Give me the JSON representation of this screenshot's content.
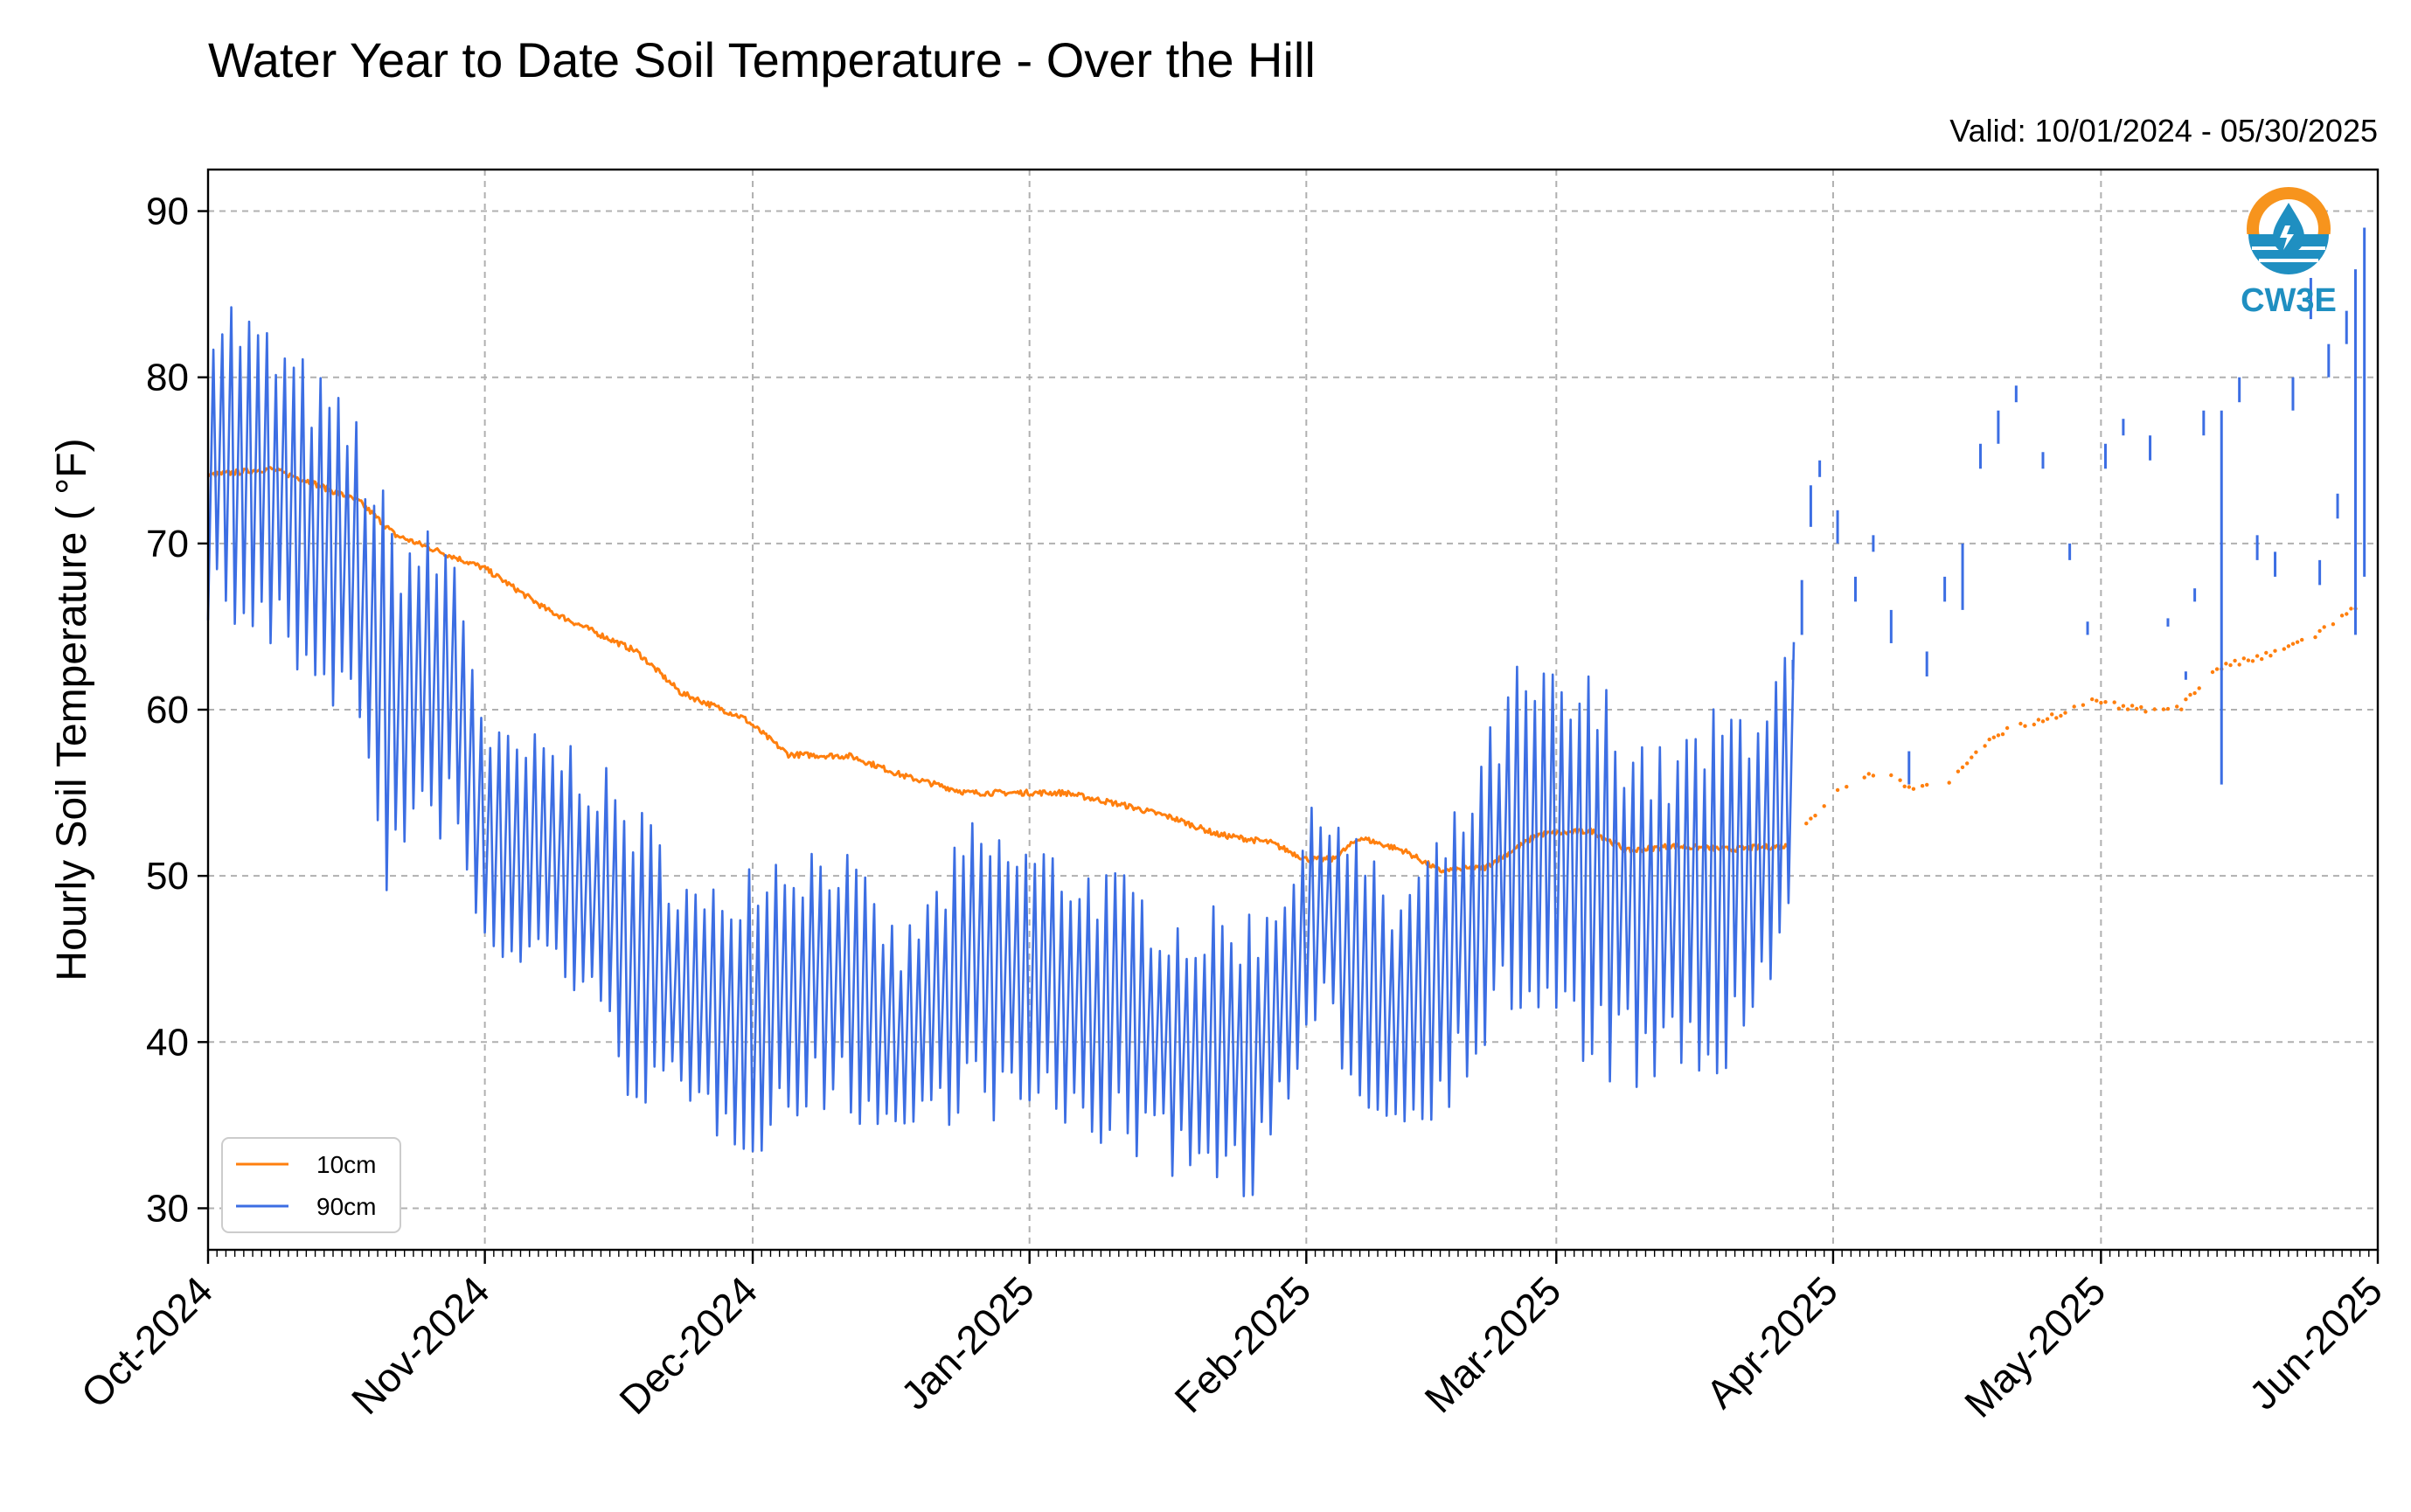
{
  "colors": {
    "series_10cm": "#ff7f0e",
    "series_90cm": "#3c6ee3",
    "logo_orange": "#f7941d",
    "logo_blue": "#1f8fc1"
  },
  "logo": {
    "text": "CW3E",
    "icon": "water-drop-icon"
  },
  "chart_data": {
    "type": "line",
    "title": "Water Year to Date Soil Temperature - Over the Hill",
    "subtitle": "Valid: 10/01/2024 - 05/30/2025",
    "xlabel": "",
    "ylabel": "Hourly Soil Temperature ( °F)",
    "xlim": [
      "2024-10-01",
      "2025-06-01"
    ],
    "ylim": [
      27.5,
      92.5
    ],
    "yticks": [
      30,
      40,
      50,
      60,
      70,
      80,
      90
    ],
    "xticks": [
      "2024-10-01",
      "2024-11-01",
      "2024-12-01",
      "2025-01-01",
      "2025-02-01",
      "2025-03-01",
      "2025-04-01",
      "2025-05-01",
      "2025-06-01"
    ],
    "xtick_labels": [
      "Oct-2024",
      "Nov-2024",
      "Dec-2024",
      "Jan-2025",
      "Feb-2025",
      "Mar-2025",
      "Apr-2025",
      "May-2025",
      "Jun-2025"
    ],
    "grid": true,
    "legend": {
      "position": "bottom-left",
      "entries": [
        "10cm",
        "90cm"
      ]
    },
    "series": [
      {
        "name": "10cm",
        "color": "#ff7f0e",
        "style": "line until Mar 27 2025, then sparse points",
        "daily_mean": [
          [
            "2024-10-01",
            74.1
          ],
          [
            "2024-10-08",
            74.5
          ],
          [
            "2024-10-12",
            73.8
          ],
          [
            "2024-10-18",
            72.5
          ],
          [
            "2024-10-22",
            70.5
          ],
          [
            "2024-10-27",
            69.5
          ],
          [
            "2024-11-01",
            68.5
          ],
          [
            "2024-11-08",
            66.0
          ],
          [
            "2024-11-12",
            65.0
          ],
          [
            "2024-11-18",
            63.5
          ],
          [
            "2024-11-23",
            61.0
          ],
          [
            "2024-11-30",
            59.5
          ],
          [
            "2024-12-05",
            57.3
          ],
          [
            "2024-12-12",
            57.2
          ],
          [
            "2024-12-18",
            56.0
          ],
          [
            "2024-12-25",
            55.0
          ],
          [
            "2024-12-31",
            55.0
          ],
          [
            "2025-01-05",
            55.0
          ],
          [
            "2025-01-12",
            54.2
          ],
          [
            "2025-01-17",
            53.5
          ],
          [
            "2025-01-22",
            52.5
          ],
          [
            "2025-01-28",
            52.0
          ],
          [
            "2025-02-01",
            51.0
          ],
          [
            "2025-02-04",
            51.0
          ],
          [
            "2025-02-07",
            52.3
          ],
          [
            "2025-02-12",
            51.5
          ],
          [
            "2025-02-16",
            50.3
          ],
          [
            "2025-02-21",
            50.5
          ],
          [
            "2025-02-27",
            52.5
          ],
          [
            "2025-03-05",
            52.7
          ],
          [
            "2025-03-09",
            51.5
          ],
          [
            "2025-03-14",
            51.8
          ],
          [
            "2025-03-20",
            51.6
          ],
          [
            "2025-03-27",
            51.8
          ],
          [
            "2025-04-01",
            55.0
          ],
          [
            "2025-04-06",
            56.3
          ],
          [
            "2025-04-10",
            55.3
          ],
          [
            "2025-04-14",
            55.5
          ],
          [
            "2025-04-19",
            58.5
          ],
          [
            "2025-04-25",
            59.5
          ],
          [
            "2025-04-30",
            60.5
          ],
          [
            "2025-05-05",
            60.0
          ],
          [
            "2025-05-10",
            60.2
          ],
          [
            "2025-05-14",
            62.5
          ],
          [
            "2025-05-20",
            63.3
          ],
          [
            "2025-05-25",
            64.5
          ],
          [
            "2025-05-30",
            66.3
          ]
        ]
      },
      {
        "name": "90cm",
        "color": "#3c6ee3",
        "style": "continuous diurnal line until Mar 27 2025, then intermittent short segments",
        "daily_envelope": [
          {
            "date": "2024-10-01",
            "low": 65.0,
            "high": 86.5
          },
          {
            "date": "2024-10-10",
            "low": 62.0,
            "high": 82.0
          },
          {
            "date": "2024-10-17",
            "low": 59.0,
            "high": 78.0
          },
          {
            "date": "2024-10-21",
            "low": 48.5,
            "high": 72.0
          },
          {
            "date": "2024-10-28",
            "low": 52.5,
            "high": 70.5
          },
          {
            "date": "2024-11-01",
            "low": 44.0,
            "high": 59.0
          },
          {
            "date": "2024-11-10",
            "low": 43.5,
            "high": 58.5
          },
          {
            "date": "2024-11-17",
            "low": 36.5,
            "high": 55.0
          },
          {
            "date": "2024-11-25",
            "low": 34.5,
            "high": 49.0
          },
          {
            "date": "2024-12-01",
            "low": 33.0,
            "high": 52.5
          },
          {
            "date": "2024-12-10",
            "low": 36.0,
            "high": 52.5
          },
          {
            "date": "2024-12-17",
            "low": 33.5,
            "high": 46.5
          },
          {
            "date": "2024-12-25",
            "low": 35.5,
            "high": 53.5
          },
          {
            "date": "2025-01-01",
            "low": 34.5,
            "high": 52.5
          },
          {
            "date": "2025-01-10",
            "low": 33.5,
            "high": 50.5
          },
          {
            "date": "2025-01-18",
            "low": 31.5,
            "high": 48.0
          },
          {
            "date": "2025-01-26",
            "low": 30.5,
            "high": 48.5
          },
          {
            "date": "2025-02-03",
            "low": 40.0,
            "high": 56.0
          },
          {
            "date": "2025-02-10",
            "low": 33.5,
            "high": 49.0
          },
          {
            "date": "2025-02-17",
            "low": 36.0,
            "high": 54.0
          },
          {
            "date": "2025-02-24",
            "low": 41.0,
            "high": 63.0
          },
          {
            "date": "2025-03-05",
            "low": 37.5,
            "high": 62.5
          },
          {
            "date": "2025-03-12",
            "low": 36.5,
            "high": 58.0
          },
          {
            "date": "2025-03-20",
            "low": 37.0,
            "high": 61.0
          },
          {
            "date": "2025-03-27",
            "low": 44.0,
            "high": 64.5
          }
        ],
        "sparse_segments": [
          [
            "2025-03-27",
            61.8,
            63.0
          ],
          [
            "2025-03-28",
            64.5,
            67.8
          ],
          [
            "2025-03-29",
            71.0,
            73.5
          ],
          [
            "2025-03-30",
            74.0,
            75.0
          ],
          [
            "2025-04-01",
            70.0,
            72.0
          ],
          [
            "2025-04-03",
            66.5,
            68.0
          ],
          [
            "2025-04-05",
            69.5,
            70.5
          ],
          [
            "2025-04-07",
            64.0,
            66.0
          ],
          [
            "2025-04-09",
            55.5,
            57.5
          ],
          [
            "2025-04-11",
            62.0,
            63.5
          ],
          [
            "2025-04-13",
            66.5,
            68.0
          ],
          [
            "2025-04-15",
            66.0,
            70.0
          ],
          [
            "2025-04-17",
            74.5,
            76.0
          ],
          [
            "2025-04-19",
            76.0,
            78.0
          ],
          [
            "2025-04-21",
            78.5,
            79.5
          ],
          [
            "2025-04-24",
            74.5,
            75.5
          ],
          [
            "2025-04-27",
            69.0,
            70.0
          ],
          [
            "2025-04-29",
            64.5,
            65.3
          ],
          [
            "2025-05-01",
            74.5,
            76.0
          ],
          [
            "2025-05-03",
            76.5,
            77.5
          ],
          [
            "2025-05-06",
            75.0,
            76.5
          ],
          [
            "2025-05-08",
            65.0,
            65.5
          ],
          [
            "2025-05-10",
            61.8,
            62.3
          ],
          [
            "2025-05-11",
            66.5,
            67.3
          ],
          [
            "2025-05-12",
            76.5,
            78.0
          ],
          [
            "2025-05-14",
            55.5,
            78.0
          ],
          [
            "2025-05-16",
            78.5,
            80.0
          ],
          [
            "2025-05-18",
            69.0,
            70.5
          ],
          [
            "2025-05-20",
            68.0,
            69.5
          ],
          [
            "2025-05-22",
            78.0,
            80.0
          ],
          [
            "2025-05-24",
            83.5,
            86.0
          ],
          [
            "2025-05-25",
            67.5,
            69.0
          ],
          [
            "2025-05-26",
            80.0,
            82.0
          ],
          [
            "2025-05-27",
            71.5,
            73.0
          ],
          [
            "2025-05-28",
            82.0,
            84.0
          ],
          [
            "2025-05-29",
            64.5,
            86.5
          ],
          [
            "2025-05-30",
            68.0,
            89.0
          ]
        ]
      }
    ]
  }
}
